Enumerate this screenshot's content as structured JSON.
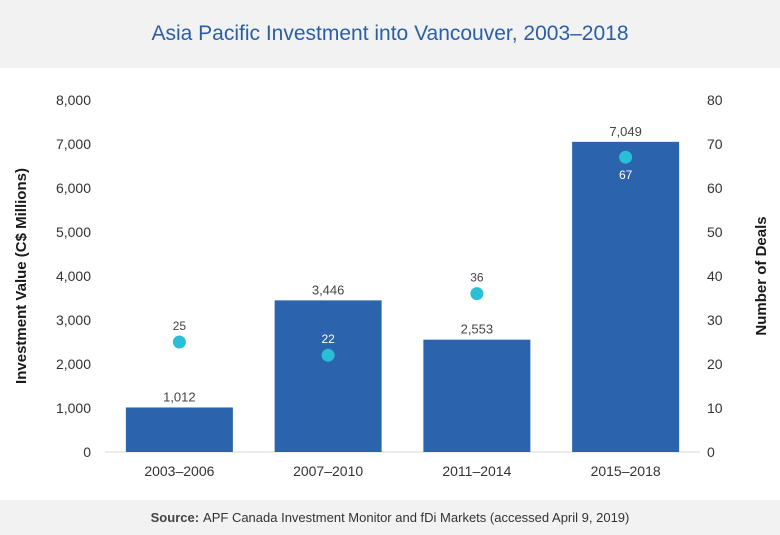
{
  "title": "Asia Pacific Investment into Vancouver, 2003–2018",
  "footer": {
    "source_label": "Source:",
    "source_text": "APF Canada Investment Monitor and fDi Markets (accessed April 9, 2019)"
  },
  "colors": {
    "bar": "#2b63ad",
    "dot": "#29bfd6",
    "title": "#2a5ea8",
    "band": "#f2f2f2"
  },
  "chart_data": {
    "type": "bar",
    "categories": [
      "2003–2006",
      "2007–2010",
      "2011–2014",
      "2015–2018"
    ],
    "series": [
      {
        "name": "",
        "type": "bar",
        "axis": "left",
        "values": [
          1012,
          3446,
          2553,
          7049
        ],
        "labels": [
          "1,012",
          "3,446",
          "2,553",
          "7,049"
        ]
      },
      {
        "name": "",
        "type": "scatter",
        "axis": "right",
        "values": [
          25,
          22,
          36,
          67
        ],
        "labels": [
          "25",
          "22",
          "36",
          "67"
        ]
      }
    ],
    "ylabel": "Investment Value (C$ Millions)",
    "ylabel_right": "Number of Deals",
    "ylim": [
      0,
      8000
    ],
    "ylim_right": [
      0,
      80
    ],
    "yticks": [
      "0",
      "1,000",
      "2,000",
      "3,000",
      "4,000",
      "5,000",
      "6,000",
      "7,000",
      "8,000"
    ],
    "yticks_right": [
      "0",
      "10",
      "20",
      "30",
      "40",
      "50",
      "60",
      "70",
      "80"
    ],
    "grid": false,
    "legend": "none"
  }
}
